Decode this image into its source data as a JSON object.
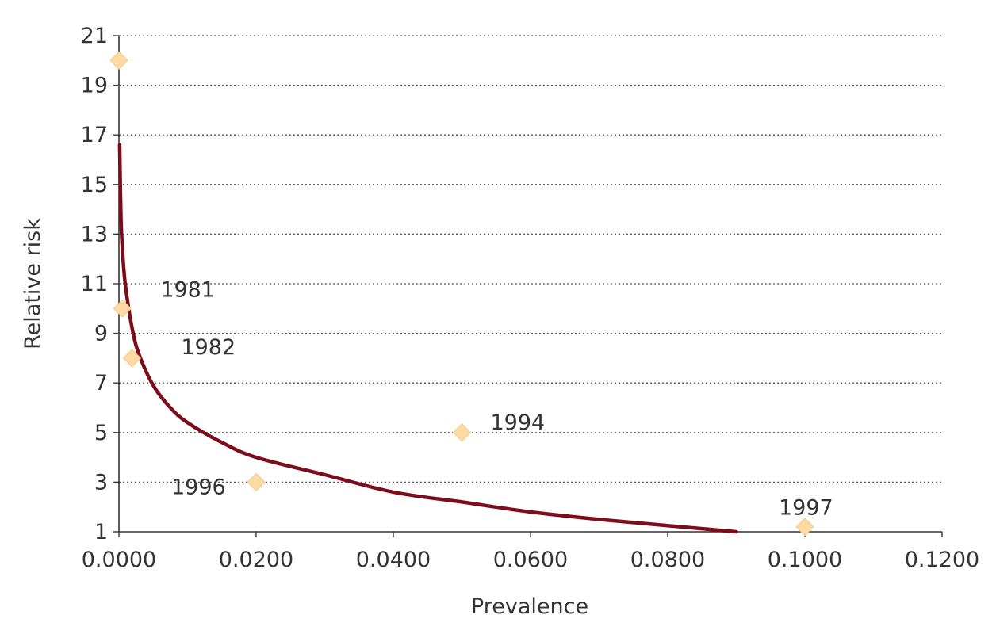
{
  "chart_data": {
    "type": "scatter",
    "title": "",
    "xlabel": "Prevalence",
    "ylabel": "Relative risk",
    "xlim": [
      0,
      0.12
    ],
    "ylim": [
      1,
      21
    ],
    "x_ticks": [
      0,
      0.02,
      0.04,
      0.06,
      0.08,
      0.1,
      0.12
    ],
    "x_tick_labels": [
      "0.0000",
      "0.0200",
      "0.0400",
      "0.0600",
      "0.0800",
      "0.1000",
      "0.1200"
    ],
    "y_ticks": [
      1,
      3,
      5,
      7,
      9,
      11,
      13,
      15,
      17,
      19,
      21
    ],
    "y_tick_labels": [
      "1",
      "3",
      "5",
      "7",
      "9",
      "11",
      "13",
      "15",
      "17",
      "19",
      "21"
    ],
    "grid": "horizontal-dotted",
    "points": [
      {
        "x": 0.0,
        "y": 20,
        "label": ""
      },
      {
        "x": 0.0005,
        "y": 10,
        "label": "1981"
      },
      {
        "x": 0.0019,
        "y": 8,
        "label": "1982"
      },
      {
        "x": 0.05,
        "y": 5,
        "label": "1994"
      },
      {
        "x": 0.02,
        "y": 3,
        "label": "1996"
      },
      {
        "x": 0.1,
        "y": 1.2,
        "label": "1997"
      }
    ],
    "curve": {
      "x": [
        0.0001,
        0.0003,
        0.0006,
        0.001,
        0.002,
        0.003,
        0.005,
        0.0075,
        0.01,
        0.015,
        0.02,
        0.03,
        0.04,
        0.05,
        0.06,
        0.07,
        0.08,
        0.09
      ],
      "y": [
        16.6,
        13.6,
        12.0,
        10.8,
        9.1,
        8.1,
        6.9,
        6.0,
        5.4,
        4.6,
        4.0,
        3.3,
        2.6,
        2.2,
        1.8,
        1.5,
        1.25,
        1.0
      ]
    },
    "colors": {
      "points": "#fdd9a4",
      "curve": "#7d0d1a",
      "text": "#333333"
    }
  }
}
